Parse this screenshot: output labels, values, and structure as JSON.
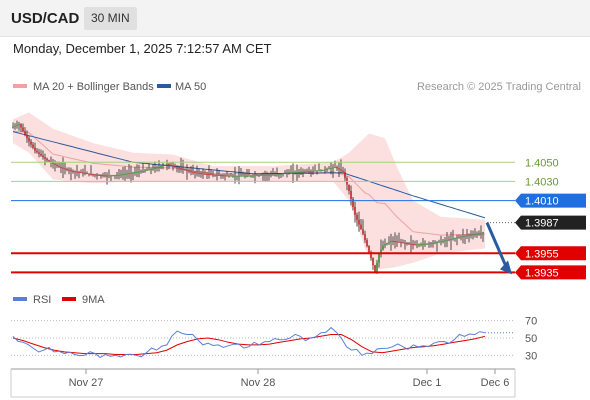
{
  "header": {
    "symbol": "USD/CAD",
    "timeframe": "30 MIN"
  },
  "timestamp": "Monday, December 1, 2025 7:12:57 AM CET",
  "legend": {
    "ma20": "MA 20 + Bollinger Bands",
    "ma50": "MA 50",
    "credit": "Research © 2025 Trading Central"
  },
  "rsi_legend": {
    "rsi": "RSI",
    "ma": "9MA"
  },
  "colors": {
    "bollinger": "#f4a0a0",
    "ma50": "#2a5aa0",
    "support": "#e00000",
    "resistance": "#a8d080",
    "pivot": "#1f6fe0",
    "rsi": "#5a7fd8",
    "rsi_ma": "#e00000"
  },
  "chart_data": [
    {
      "type": "candlestick",
      "title": "USD/CAD",
      "timeframe": "30 MIN",
      "x_ticks": [
        "Nov 27",
        "Nov 28",
        "Dec 1",
        "Dec 6"
      ],
      "ylim": [
        1.3925,
        1.4115
      ],
      "series": [
        {
          "name": "MA 20 + Bollinger Bands",
          "kind": "band"
        },
        {
          "name": "MA 50",
          "kind": "line"
        }
      ],
      "price_path": [
        [
          0,
          1.4086
        ],
        [
          4,
          1.409
        ],
        [
          8,
          1.4075
        ],
        [
          12,
          1.4062
        ],
        [
          18,
          1.4052
        ],
        [
          24,
          1.4045
        ],
        [
          30,
          1.4041
        ],
        [
          36,
          1.4039
        ],
        [
          42,
          1.4037
        ],
        [
          48,
          1.4036
        ],
        [
          54,
          1.4037
        ],
        [
          60,
          1.4039
        ],
        [
          66,
          1.4041
        ],
        [
          72,
          1.4044
        ],
        [
          78,
          1.4048
        ],
        [
          84,
          1.4044
        ],
        [
          90,
          1.404
        ],
        [
          96,
          1.4038
        ],
        [
          102,
          1.4037
        ],
        [
          108,
          1.4036
        ],
        [
          114,
          1.4036
        ],
        [
          120,
          1.4036
        ],
        [
          126,
          1.4037
        ],
        [
          132,
          1.4037
        ],
        [
          138,
          1.4039
        ],
        [
          144,
          1.404
        ],
        [
          150,
          1.4041
        ],
        [
          156,
          1.4042
        ],
        [
          162,
          1.4045
        ],
        [
          166,
          1.404
        ],
        [
          169,
          1.402
        ],
        [
          172,
          1.3995
        ],
        [
          176,
          1.3975
        ],
        [
          180,
          1.395
        ],
        [
          182,
          1.3935
        ],
        [
          184,
          1.3955
        ],
        [
          186,
          1.3963
        ],
        [
          190,
          1.3968
        ],
        [
          196,
          1.3966
        ],
        [
          202,
          1.3964
        ],
        [
          208,
          1.3965
        ],
        [
          214,
          1.3967
        ],
        [
          220,
          1.397
        ],
        [
          226,
          1.3973
        ],
        [
          232,
          1.3975
        ],
        [
          236,
          1.3977
        ]
      ],
      "ma50": [
        [
          0,
          1.4082
        ],
        [
          60,
          1.405
        ],
        [
          120,
          1.4038
        ],
        [
          165,
          1.4039
        ],
        [
          200,
          1.4015
        ],
        [
          236,
          1.3992
        ]
      ],
      "bollinger_upper": [
        [
          0,
          1.4095
        ],
        [
          8,
          1.4102
        ],
        [
          20,
          1.4085
        ],
        [
          40,
          1.407
        ],
        [
          60,
          1.406
        ],
        [
          80,
          1.4058
        ],
        [
          100,
          1.4046
        ],
        [
          130,
          1.4046
        ],
        [
          160,
          1.405
        ],
        [
          168,
          1.406
        ],
        [
          178,
          1.408
        ],
        [
          186,
          1.4075
        ],
        [
          192,
          1.4045
        ],
        [
          200,
          1.401
        ],
        [
          214,
          1.3993
        ],
        [
          236,
          1.399
        ]
      ],
      "bollinger_lower": [
        [
          0,
          1.407
        ],
        [
          8,
          1.406
        ],
        [
          20,
          1.4032
        ],
        [
          40,
          1.4028
        ],
        [
          60,
          1.403
        ],
        [
          80,
          1.403
        ],
        [
          100,
          1.403
        ],
        [
          130,
          1.403
        ],
        [
          160,
          1.403
        ],
        [
          168,
          1.401
        ],
        [
          176,
          1.396
        ],
        [
          182,
          1.3938
        ],
        [
          190,
          1.394
        ],
        [
          200,
          1.3945
        ],
        [
          214,
          1.3955
        ],
        [
          236,
          1.396
        ]
      ],
      "levels": [
        {
          "value": 1.405,
          "label": "1.4050",
          "type": "resistance"
        },
        {
          "value": 1.403,
          "label": "1.4030",
          "type": "resistance"
        },
        {
          "value": 1.401,
          "label": "1.4010",
          "type": "pivot"
        },
        {
          "value": 1.3987,
          "label": "1.3987",
          "type": "last-price"
        },
        {
          "value": 1.3955,
          "label": "1.3955",
          "type": "support"
        },
        {
          "value": 1.3935,
          "label": "1.3935",
          "type": "support"
        }
      ],
      "projection": {
        "from": 1.3987,
        "to": 1.3935,
        "direction": "down"
      }
    },
    {
      "type": "line",
      "title": "RSI",
      "ylim": [
        20,
        80
      ],
      "y_ticks": [
        70,
        50,
        30
      ],
      "series": [
        {
          "name": "RSI",
          "values": [
            52,
            45,
            38,
            36,
            34,
            32,
            31,
            30,
            32,
            31,
            30,
            31,
            30,
            33,
            36,
            42,
            58,
            54,
            48,
            44,
            42,
            41,
            43,
            40,
            42,
            46,
            48,
            50,
            52,
            50,
            56,
            62,
            50,
            36,
            30,
            32,
            38,
            40,
            40,
            42,
            41,
            44,
            46,
            48,
            52,
            54,
            56
          ]
        },
        {
          "name": "9MA",
          "values": [
            50,
            47,
            43,
            39,
            36,
            34,
            33,
            32,
            32,
            32,
            31,
            31,
            31,
            32,
            33,
            36,
            42,
            46,
            49,
            50,
            48,
            45,
            43,
            42,
            42,
            43,
            45,
            47,
            49,
            50,
            52,
            54,
            54,
            48,
            40,
            34,
            33,
            35,
            37,
            39,
            40,
            41,
            43,
            45,
            47,
            49,
            52
          ]
        }
      ]
    }
  ]
}
